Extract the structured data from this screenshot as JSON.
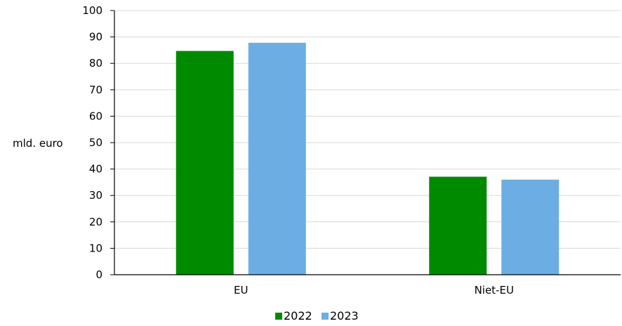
{
  "chart_data": {
    "type": "bar",
    "categories": [
      "EU",
      "Niet-EU"
    ],
    "series": [
      {
        "name": "2022",
        "values": [
          84.7,
          37.1
        ],
        "color": "#008a00"
      },
      {
        "name": "2023",
        "values": [
          87.8,
          36.0
        ],
        "color": "#6caee3"
      }
    ],
    "title": "",
    "xlabel": "",
    "ylabel": "mld. euro",
    "ylim": [
      0,
      100
    ],
    "yticks": [
      0,
      10,
      20,
      30,
      40,
      50,
      60,
      70,
      80,
      90,
      100
    ],
    "grid": true,
    "legend": "bottom-center"
  },
  "colors": {
    "grid": "#d9d9d9",
    "axis": "#000000"
  }
}
